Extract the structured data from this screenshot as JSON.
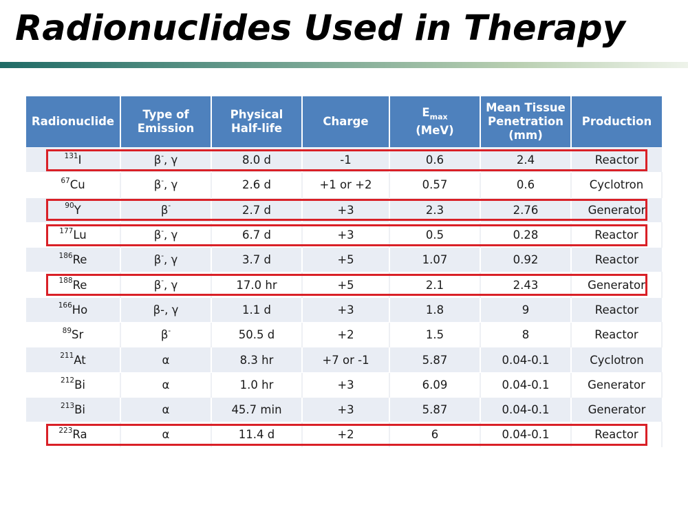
{
  "slide": {
    "title": "Radionuclides Used in Therapy"
  },
  "table": {
    "headers": {
      "radionuclide": "Radionuclide",
      "emission": "Type of Emission",
      "halflife": "Physical Half-life",
      "charge": "Charge",
      "emax_main": "E",
      "emax_sub": "max",
      "emax_unit": "(MeV)",
      "penetration": "Mean Tissue Penetration (mm)",
      "production": "Production"
    },
    "rows": [
      {
        "mass": "131",
        "symbol": "I",
        "emission": "β-, γ",
        "emission_base": "β",
        "emission_sup": "-",
        "emission_tail": ", γ",
        "halflife": "8.0 d",
        "charge": "-1",
        "emax": "0.6",
        "penetration": "2.4",
        "production": "Reactor",
        "highlighted": true
      },
      {
        "mass": "67",
        "symbol": "Cu",
        "emission_base": "β",
        "emission_sup": "-",
        "emission_tail": ", γ",
        "halflife": "2.6 d",
        "charge": "+1 or +2",
        "emax": "0.57",
        "penetration": "0.6",
        "production": "Cyclotron",
        "highlighted": false
      },
      {
        "mass": "90",
        "symbol": "Y",
        "emission_base": "β",
        "emission_sup": "-",
        "emission_tail": "",
        "halflife": "2.7 d",
        "charge": "+3",
        "emax": "2.3",
        "penetration": "2.76",
        "production": "Generator",
        "highlighted": true
      },
      {
        "mass": "177",
        "symbol": "Lu",
        "emission_base": "β",
        "emission_sup": "-",
        "emission_tail": ", γ",
        "halflife": "6.7 d",
        "charge": "+3",
        "emax": "0.5",
        "penetration": "0.28",
        "production": "Reactor",
        "highlighted": true
      },
      {
        "mass": "186",
        "symbol": "Re",
        "emission_base": "β",
        "emission_sup": "-",
        "emission_tail": ", γ",
        "halflife": "3.7 d",
        "charge": "+5",
        "emax": "1.07",
        "penetration": "0.92",
        "production": "Reactor",
        "highlighted": false
      },
      {
        "mass": "188",
        "symbol": "Re",
        "emission_base": "β",
        "emission_sup": "-",
        "emission_tail": ", γ",
        "halflife": "17.0 hr",
        "charge": "+5",
        "emax": "2.1",
        "penetration": "2.43",
        "production": "Generator",
        "highlighted": true
      },
      {
        "mass": "166",
        "symbol": "Ho",
        "emission_base": "β-, γ",
        "emission_sup": "",
        "emission_tail": "",
        "halflife": "1.1 d",
        "charge": "+3",
        "emax": "1.8",
        "penetration": "9",
        "production": "Reactor",
        "highlighted": false
      },
      {
        "mass": "89",
        "symbol": "Sr",
        "emission_base": "β",
        "emission_sup": "-",
        "emission_tail": "",
        "halflife": "50.5 d",
        "charge": "+2",
        "emax": "1.5",
        "penetration": "8",
        "production": "Reactor",
        "highlighted": false
      },
      {
        "mass": "211",
        "symbol": "At",
        "emission_base": "α",
        "emission_sup": "",
        "emission_tail": "",
        "halflife": "8.3 hr",
        "charge": "+7 or -1",
        "emax": "5.87",
        "penetration": "0.04-0.1",
        "production": "Cyclotron",
        "highlighted": false
      },
      {
        "mass": "212",
        "symbol": "Bi",
        "emission_base": "α",
        "emission_sup": "",
        "emission_tail": "",
        "halflife": "1.0 hr",
        "charge": "+3",
        "emax": "6.09",
        "penetration": "0.04-0.1",
        "production": "Generator",
        "highlighted": false
      },
      {
        "mass": "213",
        "symbol": "Bi",
        "emission_base": "α",
        "emission_sup": "",
        "emission_tail": "",
        "halflife": "45.7 min",
        "charge": "+3",
        "emax": "5.87",
        "penetration": "0.04-0.1",
        "production": "Generator",
        "highlighted": false
      },
      {
        "mass": "223",
        "symbol": "Ra",
        "emission_base": "α",
        "emission_sup": "",
        "emission_tail": "",
        "halflife": "11.4 d",
        "charge": "+2",
        "emax": "6",
        "penetration": "0.04-0.1",
        "production": "Reactor",
        "highlighted": true
      }
    ]
  },
  "colors": {
    "header_bg": "#4e81bd",
    "band_bg": "#e9edf4",
    "highlight_border": "#d92027"
  }
}
